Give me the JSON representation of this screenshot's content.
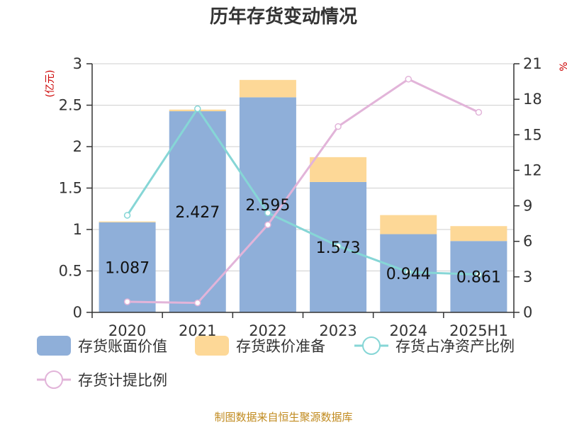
{
  "chart_data": {
    "type": "bar",
    "title": "历年存货变动情况",
    "categories": [
      "2020",
      "2021",
      "2022",
      "2023",
      "2024",
      "2025H1"
    ],
    "left_axis": {
      "unit": "(亿元)",
      "ylim": [
        0,
        3
      ],
      "ticks": [
        0,
        0.5,
        1,
        1.5,
        2,
        2.5,
        3
      ]
    },
    "right_axis": {
      "unit": "%",
      "ylim": [
        0,
        21
      ],
      "ticks": [
        0,
        3,
        6,
        9,
        12,
        15,
        18,
        21
      ]
    },
    "series": [
      {
        "name": "存货账面价值",
        "kind": "bar",
        "axis": "left",
        "color": "#8fafd9",
        "values": [
          1.087,
          2.427,
          2.595,
          1.573,
          0.944,
          0.861
        ]
      },
      {
        "name": "存货跌价准备",
        "kind": "bar-stacked",
        "axis": "left",
        "color": "#fdd897",
        "values": [
          0.01,
          0.02,
          0.21,
          0.3,
          0.23,
          0.18
        ]
      },
      {
        "name": "存货占净资产比例",
        "kind": "line",
        "axis": "right",
        "color": "#86d6d6",
        "values": [
          8.2,
          17.2,
          8.4,
          5.6,
          3.4,
          3.2
        ]
      },
      {
        "name": "存货计提比例",
        "kind": "line",
        "axis": "right",
        "color": "#e2b4d9",
        "values": [
          0.9,
          0.8,
          7.4,
          15.7,
          19.7,
          16.9
        ]
      }
    ],
    "grid": true,
    "legend_position": "bottom"
  },
  "source": "制图数据来自恒生聚源数据库"
}
